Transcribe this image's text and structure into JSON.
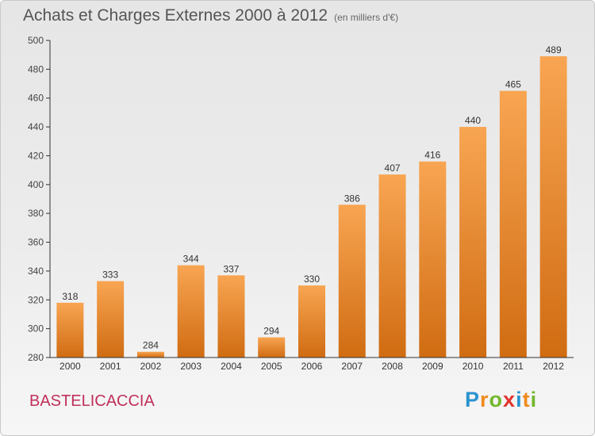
{
  "chart_data": {
    "type": "bar",
    "title": "Achats et Charges Externes 2000 à 2012",
    "subtitle": "(en milliers d'€)",
    "categories": [
      "2000",
      "2001",
      "2002",
      "2003",
      "2004",
      "2005",
      "2006",
      "2007",
      "2008",
      "2009",
      "2010",
      "2011",
      "2012"
    ],
    "values": [
      318,
      333,
      284,
      344,
      337,
      294,
      330,
      386,
      407,
      416,
      440,
      465,
      489
    ],
    "ylim": [
      280,
      500
    ],
    "yticks": [
      280,
      300,
      320,
      340,
      360,
      380,
      400,
      420,
      440,
      460,
      480,
      500
    ],
    "grid": false,
    "bar_color_top": "#f8a552",
    "bar_color_bottom": "#d06c12"
  },
  "commune": "BASTELICACCIA",
  "logo": {
    "letters": [
      "P",
      "r",
      "o",
      "x",
      "i",
      "t",
      "i"
    ],
    "colors": [
      "#2a93cf",
      "#f08a1c",
      "#72b72c",
      "#e2342f",
      "#2a93cf",
      "#f08a1c",
      "#72b72c"
    ]
  },
  "colors": {
    "commune_text": "#c0305a",
    "title_text": "#555555"
  }
}
